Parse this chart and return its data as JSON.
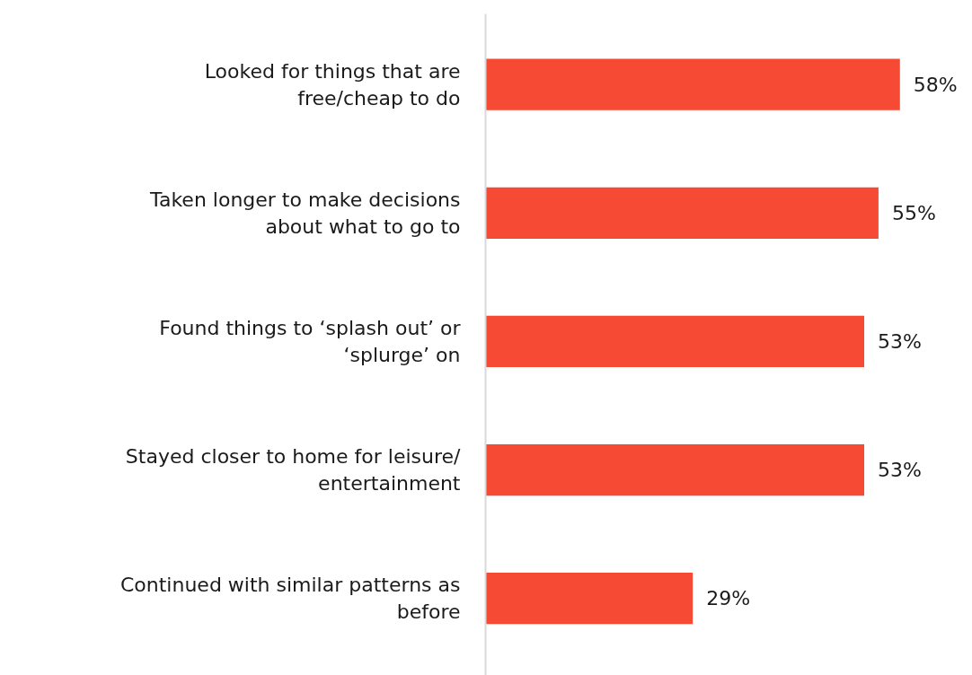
{
  "chart_data": {
    "type": "bar",
    "orientation": "horizontal",
    "categories": [
      "Looked for things that are free/cheap to do",
      "Taken longer to make decisions about what to go to",
      "Found things to ‘splash out’ or ‘splurge’ on",
      "Stayed closer to home for leisure/ entertainment",
      "Continued with similar patterns as before"
    ],
    "values": [
      58,
      55,
      53,
      53,
      29
    ],
    "color": "#f64a34",
    "value_labels": [
      "58%",
      "55%",
      "53%",
      "53%",
      "29%"
    ]
  }
}
